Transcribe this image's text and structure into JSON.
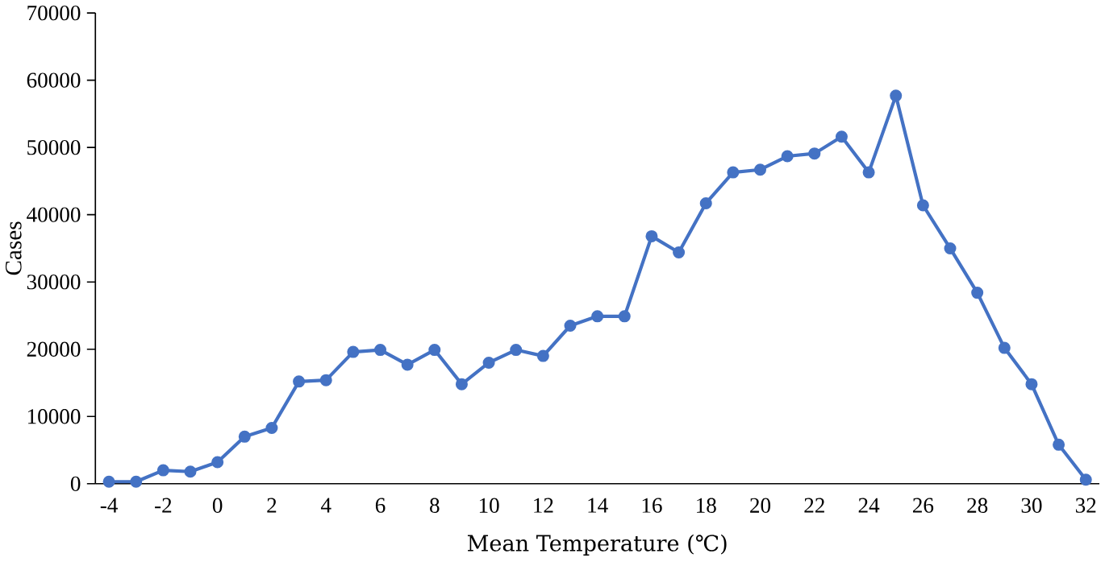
{
  "chart_data": {
    "type": "line",
    "xlabel": "Mean Temperature (℃)",
    "ylabel": "Cases",
    "categories": [
      "-4",
      null,
      "-2",
      null,
      "0",
      null,
      "2",
      null,
      "4",
      null,
      "6",
      null,
      "8",
      null,
      "10",
      null,
      "12",
      null,
      "14",
      null,
      "16",
      null,
      "18",
      null,
      "20",
      null,
      "22",
      null,
      "24",
      null,
      "26",
      null,
      "28",
      null,
      "30",
      null,
      "32"
    ],
    "series": [
      {
        "color": "#4472c4",
        "values": [
          300,
          300,
          2000,
          1800,
          3200,
          7000,
          8300,
          15200,
          15400,
          19600,
          19900,
          17700,
          19900,
          14800,
          18000,
          19900,
          19000,
          23500,
          24900,
          24900,
          36800,
          34400,
          41700,
          46300,
          46700,
          48700,
          49100,
          51600,
          46300,
          57700,
          41400,
          35000,
          28400,
          20200,
          14800,
          5800,
          600
        ]
      }
    ],
    "ylim": [
      0,
      70000
    ],
    "yticks": [
      0,
      10000,
      20000,
      30000,
      40000,
      50000,
      60000,
      70000
    ],
    "marker": "circle",
    "line_style": "solid"
  }
}
